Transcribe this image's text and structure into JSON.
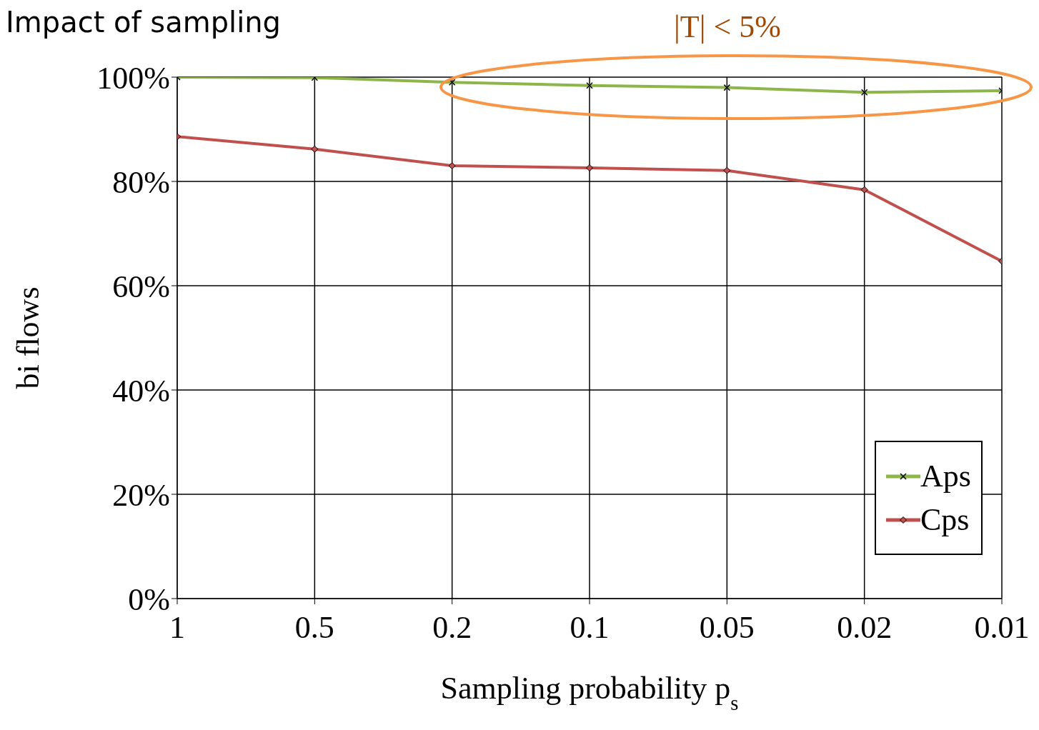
{
  "chart_data": {
    "type": "line",
    "title": "Impact of sampling",
    "xlabel": "Sampling probability p$_{s}$",
    "ylabel": "bi flows",
    "annotations": [
      "|T| < 5%"
    ],
    "categories": [
      "1",
      "0.5",
      "0.2",
      "0.1",
      "0.05",
      "0.02",
      "0.01"
    ],
    "series": [
      {
        "name": "Aps",
        "color": "#8db54a",
        "marker": "cross",
        "values": [
          100,
          99.9,
          99.0,
          98.4,
          98.0,
          97.1,
          97.4
        ]
      },
      {
        "name": "Cps",
        "color": "#c0504d",
        "marker": "diamond",
        "values": [
          88.6,
          86.2,
          83.0,
          82.6,
          82.1,
          78.4,
          64.7
        ]
      }
    ],
    "ylim": [
      0,
      100
    ],
    "yticks": [
      {
        "value": 0,
        "label": "0%"
      },
      {
        "value": 20,
        "label": "20%"
      },
      {
        "value": 40,
        "label": "40%"
      },
      {
        "value": 60,
        "label": "60%"
      },
      {
        "value": 80,
        "label": "80%"
      },
      {
        "value": 100,
        "label": "100%"
      }
    ],
    "grid": true,
    "legend": "bottom right"
  }
}
